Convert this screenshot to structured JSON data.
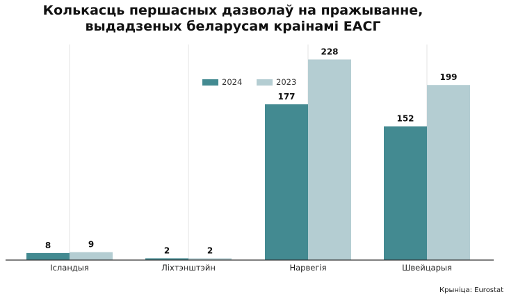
{
  "title_line1": "Колькасць першасных дазволаў на пражыванне,",
  "title_line2": "выдадзеных беларусам краінамі ЕАСГ",
  "source": "Крыніца: Eurostat",
  "colors": {
    "s2024": "#438a91",
    "s2023": "#b4cdd2",
    "axis": "#333333",
    "grid": "#e3e3e3"
  },
  "chart_data": {
    "type": "bar",
    "categories": [
      "Ісландыя",
      "Ліхтэнштэйн",
      "Нарвегія",
      "Швейцарыя"
    ],
    "series": [
      {
        "name": "2024",
        "values": [
          8,
          2,
          177,
          152
        ]
      },
      {
        "name": "2023",
        "values": [
          9,
          2,
          228,
          199
        ]
      }
    ],
    "ylim": [
      0,
      245
    ],
    "grid": "vertical",
    "legend": "top-center"
  }
}
